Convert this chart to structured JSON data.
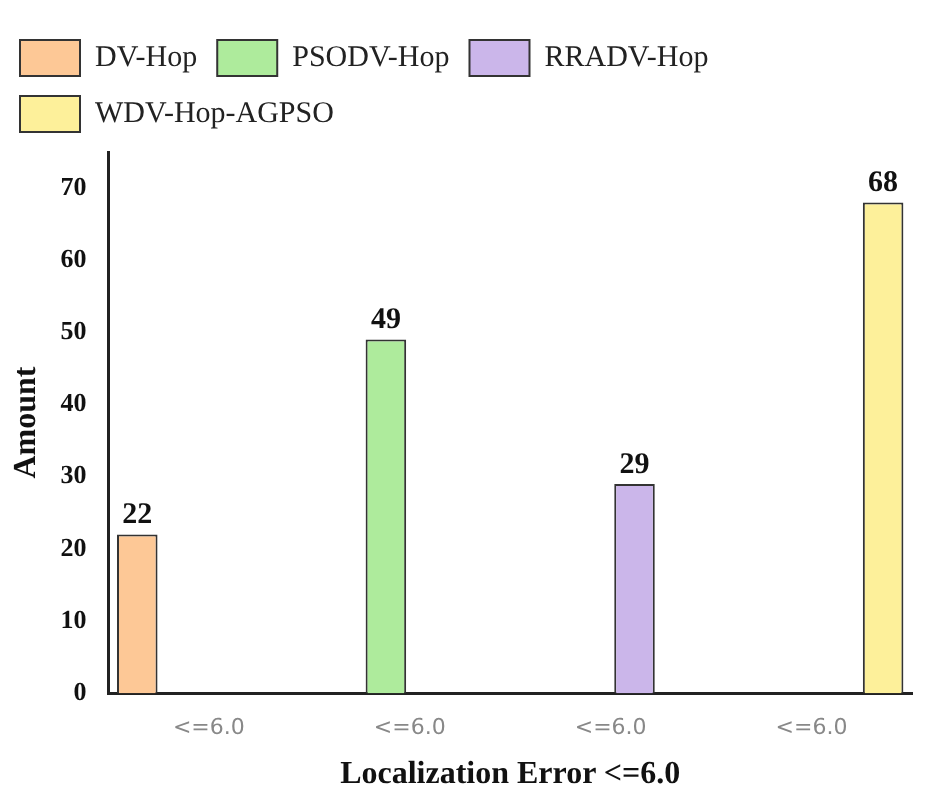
{
  "chart_data": {
    "type": "bar",
    "xlabel": "Localization Error <=6.0",
    "ylabel": "Amount",
    "categories": [
      "<=6.0",
      "<=6.0",
      "<=6.0",
      "<=6.0"
    ],
    "series": [
      {
        "name": "DV-Hop",
        "color": "#fdc896",
        "values": [
          22,
          null,
          null,
          null
        ]
      },
      {
        "name": "PSODV-Hop",
        "color": "#aeeb9c",
        "values": [
          null,
          49,
          null,
          null
        ]
      },
      {
        "name": "RRADV-Hop",
        "color": "#cbb6ea",
        "values": [
          null,
          null,
          29,
          null
        ]
      },
      {
        "name": "WDV-Hop-AGPSO",
        "color": "#fdf09a",
        "values": [
          null,
          null,
          null,
          68
        ]
      }
    ],
    "ylim": [
      0,
      75
    ],
    "yticks": [
      0,
      10,
      20,
      30,
      40,
      50,
      60,
      70
    ],
    "grid": false,
    "legend": "top left",
    "data_labels": true
  }
}
